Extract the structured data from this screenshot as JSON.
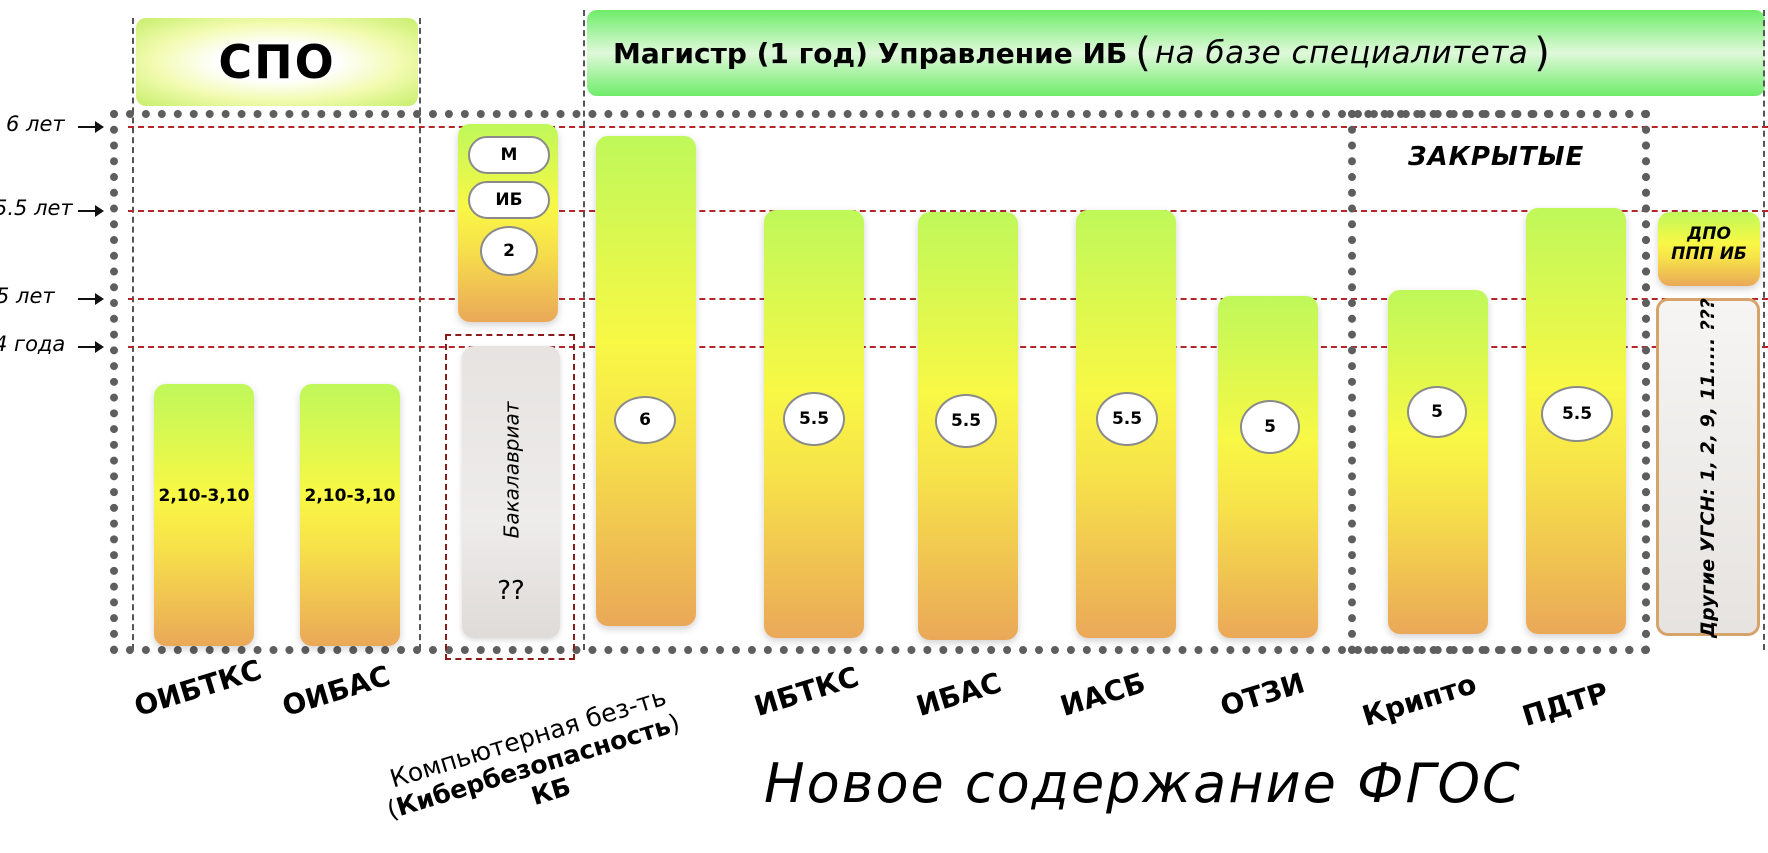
{
  "header": {
    "spo": "СПО",
    "magistr_main": "Магистр (1 год) Управление ИБ",
    "magistr_open": "(",
    "magistr_italic": "на базе специалитета",
    "magistr_close": ")"
  },
  "years": [
    "6 лет",
    "5.5 лет",
    "5 лет",
    "4 года"
  ],
  "bars": [
    {
      "label": "ОИБТКС",
      "value": "2,10-3,10"
    },
    {
      "label": "ОИБАС",
      "value": "2,10-3,10"
    },
    {
      "label": "ИБТКС",
      "value": "5.5"
    },
    {
      "label": "ИБАС",
      "value": "5.5"
    },
    {
      "label": "ИАСБ",
      "value": "5.5"
    },
    {
      "label": "ОТЗИ",
      "value": "5"
    },
    {
      "label": "Крипто",
      "value": "5"
    },
    {
      "label": "ПДТР",
      "value": "5.5"
    }
  ],
  "kb": {
    "value": "6",
    "line1": "Компьютерная без-ть",
    "line2_open": "(",
    "line2_bold": "Кибербезопасность",
    "line2_close": ")",
    "line3": "КБ"
  },
  "miniBar": [
    "М",
    "ИБ",
    "2"
  ],
  "bachelor": {
    "title": "Бакалавриат",
    "value": "??"
  },
  "closed": "ЗАКРЫТЫЕ",
  "dpo": {
    "line1": "ДПО",
    "line2": "ППП ИБ"
  },
  "other": "Другие УГСН: 1, 2, 9, 11..... ???",
  "footer": "Новое содержание ФГОС"
}
